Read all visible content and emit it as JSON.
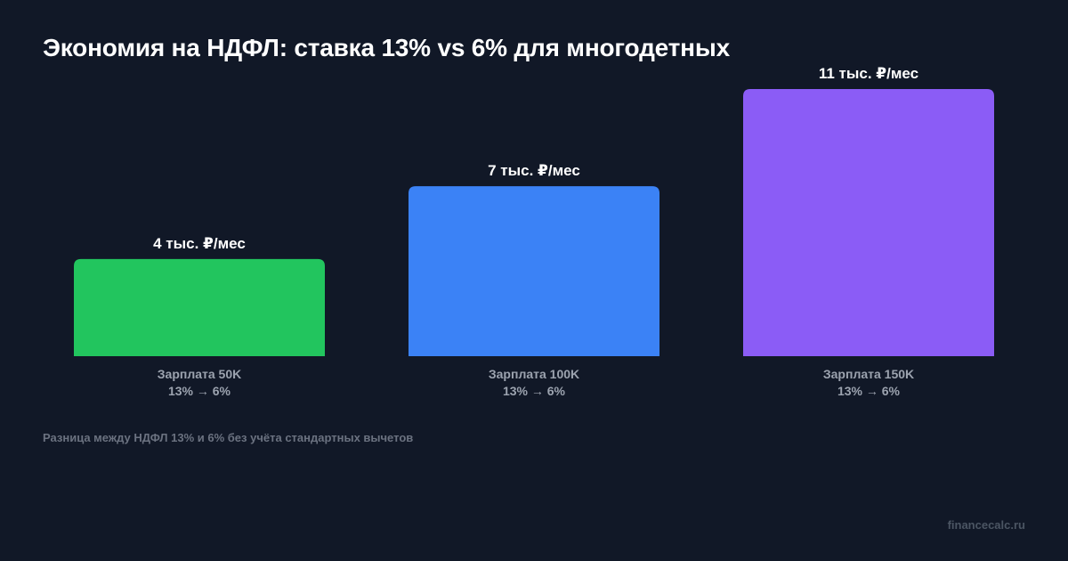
{
  "title": "Экономия на НДФЛ: ставка 13% vs 6% для многодетных",
  "footnote": "Разница между НДФЛ 13% и 6% без учёта стандартных вычетов",
  "brand": "financecalc.ru",
  "chart_data": {
    "type": "bar",
    "title": "Экономия на НДФЛ: ставка 13% vs 6% для многодетных",
    "categories": [
      "Зарплата 50K",
      "Зарплата 100K",
      "Зарплата 150K"
    ],
    "sublabels": [
      "13% → 6%",
      "13% → 6%",
      "13% → 6%"
    ],
    "values": [
      4,
      7,
      11
    ],
    "value_labels": [
      "4 тыс. ₽/мес",
      "7 тыс. ₽/мес",
      "11 тыс. ₽/мес"
    ],
    "colors": [
      "#22c55e",
      "#3b82f6",
      "#8b5cf6"
    ],
    "xlabel": "",
    "ylabel": "",
    "grid": false,
    "legend": "none"
  }
}
